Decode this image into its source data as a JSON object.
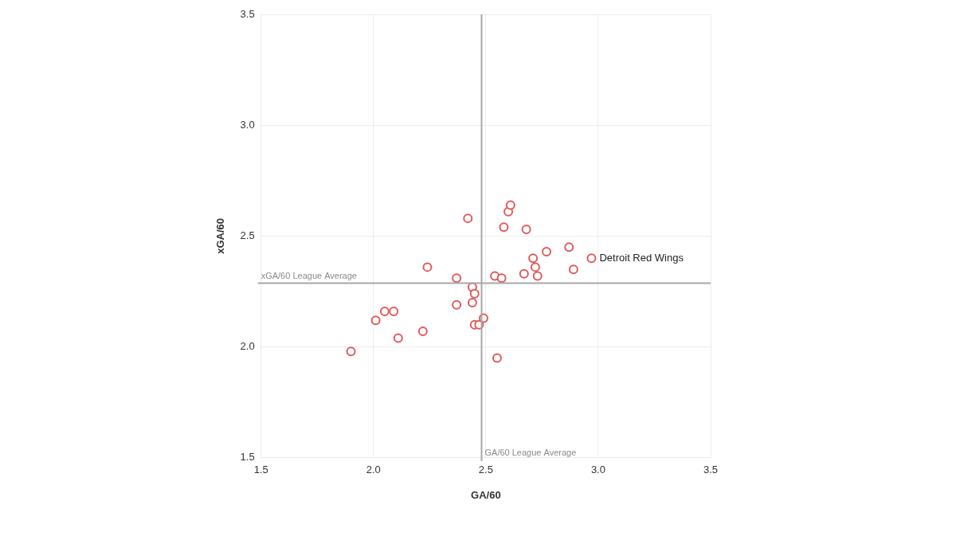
{
  "chart_data": {
    "type": "scatter",
    "x_label": "GA/60",
    "y_label": "xGA/60",
    "color": "#e05a5a",
    "marker": "open circle",
    "grid": true,
    "xlim": [
      1.5,
      3.5
    ],
    "ylim": [
      1.5,
      3.5
    ],
    "xticks": [
      1.5,
      {
        "value": 2,
        "label": "2.0"
      },
      2.5,
      {
        "value": 3,
        "label": "3.0"
      },
      3.5
    ],
    "yticks": [
      1.5,
      {
        "value": 2,
        "label": "2.0"
      },
      2.5,
      {
        "value": 3,
        "label": "3.0"
      },
      3.5
    ],
    "x": [
      1.9,
      2.01,
      2.05,
      2.09,
      2.11,
      2.22,
      2.24,
      2.37,
      2.37,
      2.42,
      2.44,
      2.44,
      2.45,
      2.45,
      2.47,
      2.49,
      2.54,
      2.57,
      2.55,
      2.58,
      2.6,
      2.61,
      2.68,
      2.67,
      2.71,
      2.72,
      2.73,
      2.77,
      2.87,
      2.89,
      2.97
    ],
    "values": [
      1.98,
      2.12,
      2.16,
      2.16,
      2.04,
      2.07,
      2.36,
      2.31,
      2.19,
      2.58,
      2.27,
      2.2,
      2.24,
      2.1,
      2.1,
      2.13,
      2.32,
      2.31,
      1.95,
      2.54,
      2.61,
      2.64,
      2.53,
      2.33,
      2.4,
      2.36,
      2.32,
      2.43,
      2.45,
      2.35,
      2.4
    ],
    "reference_lines": [
      {
        "axis": "x",
        "value": 2.48,
        "label": "GA/60 League Average"
      },
      {
        "axis": "y",
        "value": 2.29,
        "label": "xGA/60 League Average"
      }
    ],
    "point_labels": [
      {
        "x": 2.97,
        "y": 2.4,
        "label": "Detroit Red Wings"
      }
    ]
  }
}
